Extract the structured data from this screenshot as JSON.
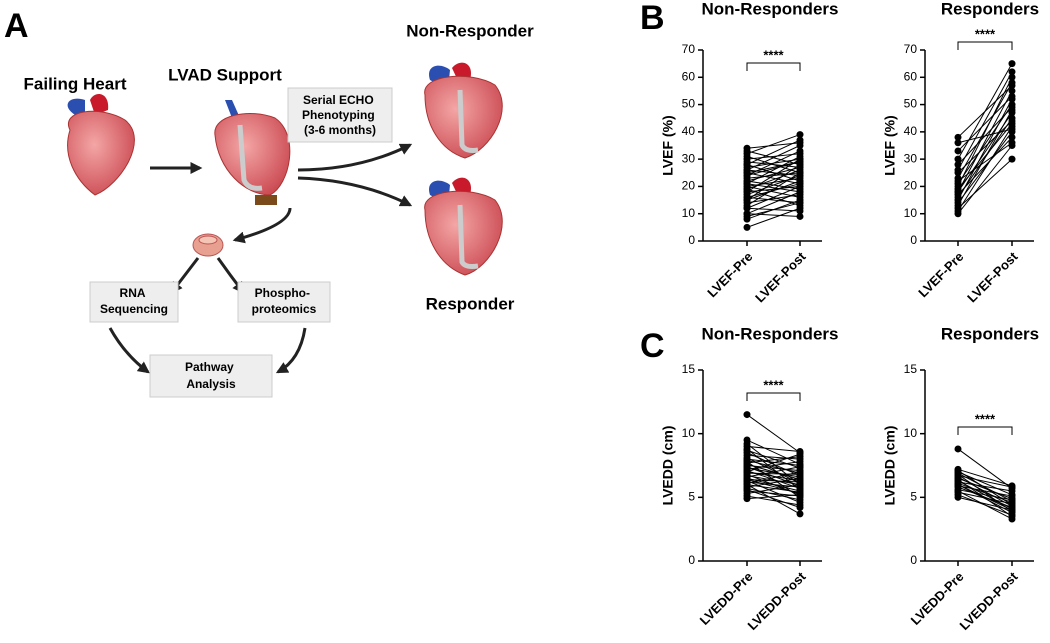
{
  "diagram": {
    "panel_labels": [
      "A",
      "B",
      "C"
    ],
    "failing_heart": "Failing Heart",
    "lvad_support": "LVAD Support",
    "non_responder": "Non-Responder",
    "responder": "Responder",
    "echo_box": [
      "Serial ECHO",
      "Phenotyping",
      "(3-6 months)"
    ],
    "rna_box": [
      "RNA",
      "Sequencing"
    ],
    "phospho_box": [
      "Phospho-",
      "proteomics"
    ],
    "pathway_box": [
      "Pathway",
      "Analysis"
    ]
  },
  "chart_data": [
    {
      "type": "paired",
      "title": "Non-Responders",
      "ylabel": "LVEF (%)",
      "categories": [
        "LVEF-Pre",
        "LVEF-Post"
      ],
      "annotation": "****",
      "ylim": [
        0,
        70
      ],
      "yticks": [
        0,
        10,
        20,
        30,
        40,
        50,
        60,
        70
      ],
      "color": "#000000",
      "pairs": [
        [
          5,
          12
        ],
        [
          8,
          15
        ],
        [
          10,
          9
        ],
        [
          10,
          18
        ],
        [
          12,
          20
        ],
        [
          13,
          25
        ],
        [
          14,
          17
        ],
        [
          15,
          22
        ],
        [
          15,
          28
        ],
        [
          16,
          14
        ],
        [
          17,
          24
        ],
        [
          18,
          30
        ],
        [
          18,
          20
        ],
        [
          19,
          26
        ],
        [
          20,
          16
        ],
        [
          20,
          23
        ],
        [
          21,
          31
        ],
        [
          22,
          27
        ],
        [
          22,
          19
        ],
        [
          23,
          25
        ],
        [
          24,
          33
        ],
        [
          24,
          29
        ],
        [
          25,
          21
        ],
        [
          26,
          35
        ],
        [
          26,
          24
        ],
        [
          27,
          30
        ],
        [
          28,
          22
        ],
        [
          28,
          37
        ],
        [
          29,
          27
        ],
        [
          30,
          32
        ],
        [
          31,
          25
        ],
        [
          32,
          39
        ],
        [
          33,
          28
        ],
        [
          34,
          36
        ],
        [
          12,
          11
        ],
        [
          16,
          21
        ],
        [
          19,
          13
        ],
        [
          21,
          18
        ],
        [
          25,
          29
        ],
        [
          9,
          14
        ]
      ]
    },
    {
      "type": "paired",
      "title": "Responders",
      "ylabel": "LVEF (%)",
      "categories": [
        "LVEF-Pre",
        "LVEF-Post"
      ],
      "annotation": "****",
      "ylim": [
        0,
        70
      ],
      "yticks": [
        0,
        10,
        20,
        30,
        40,
        50,
        60,
        70
      ],
      "color": "#000000",
      "pairs": [
        [
          10,
          35
        ],
        [
          11,
          42
        ],
        [
          12,
          30
        ],
        [
          13,
          48
        ],
        [
          14,
          40
        ],
        [
          15,
          52
        ],
        [
          16,
          45
        ],
        [
          17,
          38
        ],
        [
          18,
          55
        ],
        [
          18,
          47
        ],
        [
          19,
          43
        ],
        [
          20,
          60
        ],
        [
          21,
          50
        ],
        [
          22,
          36
        ],
        [
          23,
          58
        ],
        [
          25,
          44
        ],
        [
          26,
          62
        ],
        [
          28,
          49
        ],
        [
          30,
          65
        ],
        [
          33,
          53
        ],
        [
          36,
          41
        ],
        [
          38,
          57
        ]
      ]
    },
    {
      "type": "paired",
      "title": "Non-Responders",
      "ylabel": "LVEDD (cm)",
      "categories": [
        "LVEDD-Pre",
        "LVEDD-Post"
      ],
      "annotation": "****",
      "ylim": [
        0,
        15
      ],
      "yticks": [
        0,
        5,
        10,
        15
      ],
      "color": "#000000",
      "pairs": [
        [
          4.9,
          5.2
        ],
        [
          5.1,
          4.4
        ],
        [
          5.3,
          6.0
        ],
        [
          5.5,
          5.1
        ],
        [
          5.7,
          4.8
        ],
        [
          5.8,
          6.5
        ],
        [
          6.0,
          5.4
        ],
        [
          6.1,
          7.0
        ],
        [
          6.2,
          5.8
        ],
        [
          6.3,
          4.6
        ],
        [
          6.4,
          6.2
        ],
        [
          6.5,
          5.5
        ],
        [
          6.6,
          7.4
        ],
        [
          6.7,
          6.0
        ],
        [
          6.8,
          5.2
        ],
        [
          6.9,
          6.8
        ],
        [
          7.0,
          6.3
        ],
        [
          7.1,
          5.7
        ],
        [
          7.2,
          7.8
        ],
        [
          7.3,
          6.6
        ],
        [
          7.4,
          5.9
        ],
        [
          7.5,
          7.1
        ],
        [
          7.6,
          6.4
        ],
        [
          7.7,
          8.2
        ],
        [
          7.8,
          5.0
        ],
        [
          7.9,
          6.9
        ],
        [
          8.0,
          7.5
        ],
        [
          8.1,
          6.1
        ],
        [
          8.3,
          8.0
        ],
        [
          8.5,
          6.7
        ],
        [
          8.7,
          7.3
        ],
        [
          9.0,
          8.6
        ],
        [
          9.2,
          6.0
        ],
        [
          9.5,
          7.6
        ],
        [
          11.5,
          8.5
        ],
        [
          6.0,
          3.7
        ],
        [
          5.6,
          4.2
        ],
        [
          7.0,
          8.4
        ],
        [
          8.8,
          5.6
        ],
        [
          6.4,
          5.3
        ]
      ]
    },
    {
      "type": "paired",
      "title": "Responders",
      "ylabel": "LVEDD (cm)",
      "categories": [
        "LVEDD-Pre",
        "LVEDD-Post"
      ],
      "annotation": "****",
      "ylim": [
        0,
        15
      ],
      "yticks": [
        0,
        5,
        10,
        15
      ],
      "color": "#000000",
      "pairs": [
        [
          5.0,
          4.0
        ],
        [
          5.2,
          3.6
        ],
        [
          5.4,
          4.5
        ],
        [
          5.5,
          3.3
        ],
        [
          5.6,
          4.8
        ],
        [
          5.8,
          4.2
        ],
        [
          5.9,
          5.1
        ],
        [
          6.0,
          3.8
        ],
        [
          6.1,
          4.6
        ],
        [
          6.2,
          5.5
        ],
        [
          6.3,
          4.1
        ],
        [
          6.4,
          3.5
        ],
        [
          6.5,
          4.9
        ],
        [
          6.6,
          4.3
        ],
        [
          6.7,
          5.8
        ],
        [
          6.8,
          3.9
        ],
        [
          6.9,
          4.7
        ],
        [
          7.0,
          5.2
        ],
        [
          7.1,
          4.4
        ],
        [
          7.2,
          5.9
        ],
        [
          6.0,
          4.0
        ],
        [
          8.8,
          5.7
        ]
      ]
    }
  ]
}
